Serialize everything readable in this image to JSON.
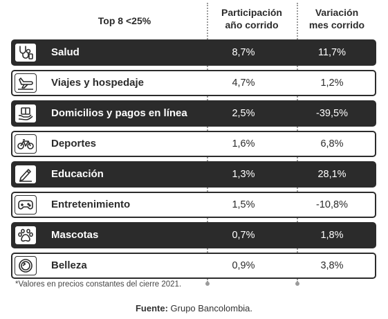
{
  "headers": {
    "category": "Top 8 <25%",
    "share_line1": "Participación",
    "share_line2": "año corrido",
    "variation_line1": "Variación",
    "variation_line2": "mes corrido"
  },
  "rows": [
    {
      "icon": "stethoscope-icon",
      "label": "Salud",
      "share": "8,7%",
      "variation": "11,7%",
      "style": "dark"
    },
    {
      "icon": "airplane-icon",
      "label": "Viajes y hospedaje",
      "share": "4,7%",
      "variation": "1,2%",
      "style": "light"
    },
    {
      "icon": "delivery-box-icon",
      "label": "Domicilios y pagos en línea",
      "share": "2,5%",
      "variation": "-39,5%",
      "style": "dark"
    },
    {
      "icon": "bicycle-icon",
      "label": "Deportes",
      "share": "1,6%",
      "variation": "6,8%",
      "style": "light"
    },
    {
      "icon": "pencil-icon",
      "label": "Educación",
      "share": "1,3%",
      "variation": "28,1%",
      "style": "dark"
    },
    {
      "icon": "gamepad-icon",
      "label": "Entretenimiento",
      "share": "1,5%",
      "variation": "-10,8%",
      "style": "light"
    },
    {
      "icon": "paw-icon",
      "label": "Mascotas",
      "share": "0,7%",
      "variation": "1,8%",
      "style": "dark"
    },
    {
      "icon": "mirror-icon",
      "label": "Belleza",
      "share": "0,9%",
      "variation": "3,8%",
      "style": "light"
    }
  ],
  "footnote": "*Valores en precios constantes del cierre 2021.",
  "source": {
    "label": "Fuente:",
    "text": " Grupo Bancolombia."
  },
  "colors": {
    "dark_row": "#2b2b2b",
    "light_row": "#ffffff",
    "divider": "#9a9a9a"
  }
}
